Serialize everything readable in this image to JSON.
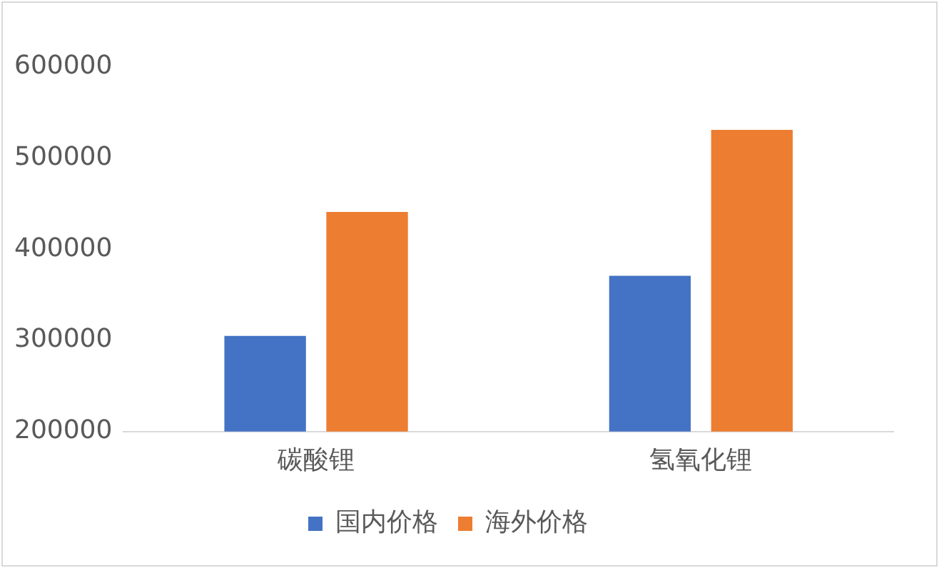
{
  "chart_data": {
    "type": "bar",
    "categories": [
      "碳酸锂",
      "氢氧化锂"
    ],
    "series": [
      {
        "name": "国内价格",
        "color": "#4472c4",
        "values": [
          305000,
          371000
        ]
      },
      {
        "name": "海外价格",
        "color": "#ed7d31",
        "values": [
          441000,
          531000
        ]
      }
    ],
    "ylim": [
      200000,
      600000
    ],
    "yticks": [
      200000,
      300000,
      400000,
      500000,
      600000
    ],
    "grid": false,
    "legend": "bottom"
  }
}
